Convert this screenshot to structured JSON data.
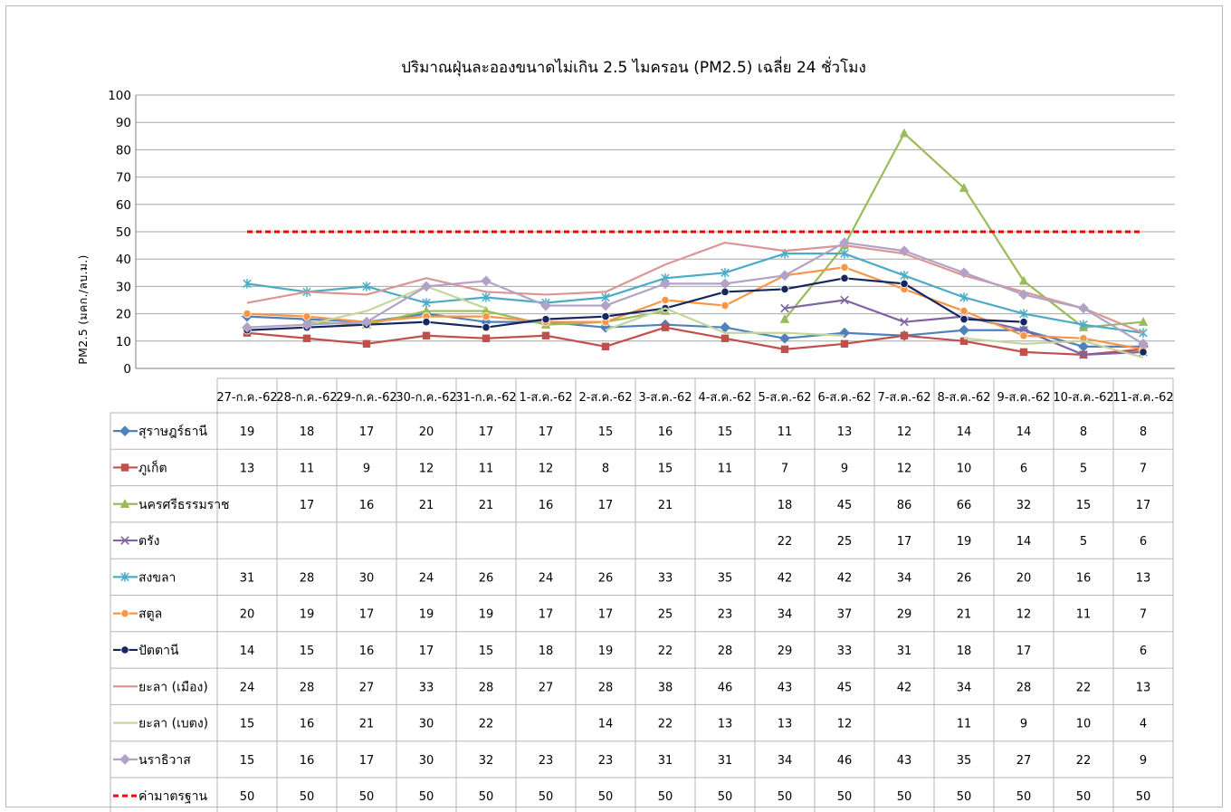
{
  "chart_data": {
    "type": "line",
    "title": "ปริมาณฝุ่นละอองขนาดไม่เกิน 2.5 ไมครอน (PM2.5) เฉลี่ย 24 ชั่วโมง",
    "ylabel": "PM2.5 (มคก./ลบ.ม.)",
    "xlabel": "",
    "ylim": [
      0,
      100
    ],
    "yticks": [
      0,
      10,
      20,
      30,
      40,
      50,
      60,
      70,
      80,
      90,
      100
    ],
    "grid": true,
    "legend": "data-table",
    "categories": [
      "27-ก.ค.-62",
      "28-ก.ค.-62",
      "29-ก.ค.-62",
      "30-ก.ค.-62",
      "31-ก.ค.-62",
      "1-ส.ค.-62",
      "2-ส.ค.-62",
      "3-ส.ค.-62",
      "4-ส.ค.-62",
      "5-ส.ค.-62",
      "6-ส.ค.-62",
      "7-ส.ค.-62",
      "8-ส.ค.-62",
      "9-ส.ค.-62",
      "10-ส.ค.-62",
      "11-ส.ค.-62"
    ],
    "series": [
      {
        "name": "สุราษฎร์ธานี",
        "color": "#4f81bd",
        "marker": "diamond",
        "values": [
          19,
          18,
          17,
          20,
          17,
          17,
          15,
          16,
          15,
          11,
          13,
          12,
          14,
          14,
          8,
          8
        ]
      },
      {
        "name": "ภูเก็ต",
        "color": "#c0504d",
        "marker": "square",
        "values": [
          13,
          11,
          9,
          12,
          11,
          12,
          8,
          15,
          11,
          7,
          9,
          12,
          10,
          6,
          5,
          7
        ]
      },
      {
        "name": "นครศรีธรรมราช",
        "color": "#9bbb59",
        "marker": "triangle",
        "values": [
          null,
          17,
          16,
          21,
          21,
          16,
          17,
          21,
          null,
          18,
          45,
          86,
          66,
          32,
          15,
          17
        ]
      },
      {
        "name": "ตรัง",
        "color": "#8064a2",
        "marker": "x",
        "values": [
          null,
          null,
          null,
          null,
          null,
          null,
          null,
          null,
          null,
          22,
          25,
          17,
          19,
          14,
          5,
          6
        ]
      },
      {
        "name": "สงขลา",
        "color": "#4bacc6",
        "marker": "star",
        "values": [
          31,
          28,
          30,
          24,
          26,
          24,
          26,
          33,
          35,
          42,
          42,
          34,
          26,
          20,
          16,
          13
        ]
      },
      {
        "name": "สตูล",
        "color": "#f79646",
        "marker": "circle",
        "values": [
          20,
          19,
          17,
          19,
          19,
          17,
          17,
          25,
          23,
          34,
          37,
          29,
          21,
          12,
          11,
          7
        ]
      },
      {
        "name": "ปัตตานี",
        "color": "#17275e",
        "marker": "circle",
        "values": [
          14,
          15,
          16,
          17,
          15,
          18,
          19,
          22,
          28,
          29,
          33,
          31,
          18,
          17,
          null,
          6
        ]
      },
      {
        "name": "ยะลา (เมือง)",
        "color": "#d99694",
        "marker": "none",
        "values": [
          24,
          28,
          27,
          33,
          28,
          27,
          28,
          38,
          46,
          43,
          45,
          42,
          34,
          28,
          22,
          13
        ]
      },
      {
        "name": "ยะลา (เบตง)",
        "color": "#c3d69b",
        "marker": "none",
        "values": [
          15,
          16,
          21,
          30,
          22,
          null,
          14,
          22,
          13,
          13,
          12,
          null,
          11,
          9,
          10,
          4
        ]
      },
      {
        "name": "นราธิวาส",
        "color": "#b3a2c7",
        "marker": "diamond",
        "values": [
          15,
          16,
          17,
          30,
          32,
          23,
          23,
          31,
          31,
          34,
          46,
          43,
          35,
          27,
          22,
          9
        ]
      },
      {
        "name": "ค่ามาตรฐาน",
        "color": "#ff0000",
        "marker": "none",
        "dashed": true,
        "values": [
          50,
          50,
          50,
          50,
          50,
          50,
          50,
          50,
          50,
          50,
          50,
          50,
          50,
          50,
          50,
          50
        ]
      }
    ]
  }
}
